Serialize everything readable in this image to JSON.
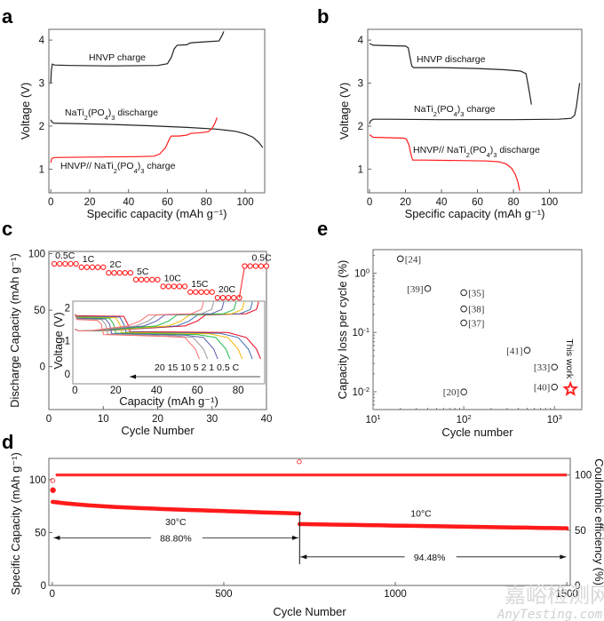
{
  "colors": {
    "black": "#222222",
    "red": "#ff1a1a",
    "rate_series": [
      "#e8001a",
      "#3d6eb5",
      "#f5b800",
      "#1ebd4a",
      "#5a5ab0",
      "#9a9a9a",
      "#ff6f6f"
    ]
  },
  "watermark": {
    "cn": "嘉峪检测网",
    "en": "AnyTesting.com"
  },
  "chart_data": [
    {
      "id": "a",
      "panel_label": "a",
      "type": "line",
      "xlabel": "Specific capacity (mAh g⁻¹)",
      "ylabel": "Voltage (V)",
      "xlim": [
        -1,
        110
      ],
      "ylim": [
        0.45,
        4.25
      ],
      "xticks": [
        0,
        20,
        40,
        60,
        80,
        100
      ],
      "yticks": [
        1,
        2,
        3,
        4
      ],
      "series": [
        {
          "name": "HNVP charge",
          "color": "black",
          "x": [
            0,
            0.3,
            0.8,
            2,
            10,
            30,
            55,
            60,
            62,
            63.5,
            65,
            70,
            71.5,
            73,
            80,
            86.5,
            88,
            89
          ],
          "y": [
            3.0,
            3.3,
            3.44,
            3.42,
            3.41,
            3.4,
            3.41,
            3.45,
            3.6,
            3.8,
            3.88,
            3.89,
            3.93,
            3.94,
            3.96,
            3.98,
            4.1,
            4.2
          ]
        },
        {
          "name": "NaTi₂(PO₄)₃ discharge",
          "color": "black",
          "x": [
            0,
            0.5,
            1.5,
            10,
            30,
            50,
            70,
            85,
            95,
            100,
            104,
            107,
            109
          ],
          "y": [
            2.15,
            2.1,
            2.07,
            2.06,
            2.04,
            2.01,
            1.97,
            1.93,
            1.88,
            1.82,
            1.74,
            1.62,
            1.5
          ]
        },
        {
          "name": "HNVP// NaTi₂(PO₄)₃ charge",
          "color": "red",
          "x": [
            0,
            0.5,
            2,
            20,
            45,
            53,
            56,
            59,
            61,
            62,
            66,
            70,
            72,
            78,
            81,
            83,
            84.5,
            85.5
          ],
          "y": [
            1.15,
            1.25,
            1.27,
            1.28,
            1.29,
            1.3,
            1.35,
            1.5,
            1.7,
            1.77,
            1.77,
            1.79,
            1.83,
            1.85,
            1.87,
            1.95,
            2.08,
            2.2
          ]
        }
      ],
      "annotations": [
        {
          "text_parts": [
            "HNVP charge"
          ],
          "color": "black"
        },
        {
          "text_parts": [
            "NaTi",
            "2",
            "(PO",
            "4",
            ")",
            "3",
            " discharge"
          ],
          "color": "black"
        },
        {
          "text_parts": [
            "HNVP// NaTi",
            "2",
            "(PO",
            "4",
            ")",
            "3",
            " charge"
          ],
          "color": "red"
        }
      ]
    },
    {
      "id": "b",
      "panel_label": "b",
      "type": "line",
      "xlabel": "Specific capacity (mAh g⁻¹)",
      "ylabel": "Voltage (V)",
      "xlim": [
        -1,
        118
      ],
      "ylim": [
        0.45,
        4.25
      ],
      "xticks": [
        0,
        20,
        40,
        60,
        80,
        100
      ],
      "yticks": [
        1,
        2,
        3,
        4
      ],
      "series": [
        {
          "name": "HNVP discharge",
          "color": "black",
          "x": [
            0,
            2,
            10,
            20,
            21.5,
            22.5,
            23.5,
            24.5,
            40,
            60,
            75,
            84,
            87,
            88,
            89,
            90
          ],
          "y": [
            3.92,
            3.88,
            3.87,
            3.86,
            3.82,
            3.6,
            3.4,
            3.36,
            3.36,
            3.34,
            3.31,
            3.28,
            3.22,
            3.0,
            2.75,
            2.5
          ]
        },
        {
          "name": "NaTi₂(PO₄)₃ charge",
          "color": "black",
          "x": [
            0,
            0.5,
            2,
            10,
            40,
            80,
            105,
            112,
            114,
            115,
            116,
            116.8
          ],
          "y": [
            2.05,
            2.12,
            2.16,
            2.16,
            2.15,
            2.15,
            2.16,
            2.18,
            2.25,
            2.45,
            2.75,
            3.0
          ]
        },
        {
          "name": "HNVP// NaTi₂(PO₄)₃ discharge",
          "color": "red",
          "x": [
            0,
            2,
            10,
            19,
            20.5,
            22,
            23,
            24,
            30,
            50,
            65,
            72,
            76,
            79,
            81,
            82.5,
            83.5
          ],
          "y": [
            1.8,
            1.74,
            1.73,
            1.72,
            1.7,
            1.55,
            1.35,
            1.21,
            1.21,
            1.2,
            1.19,
            1.17,
            1.12,
            1.02,
            0.88,
            0.7,
            0.5
          ]
        }
      ],
      "annotations": [
        {
          "text_parts": [
            "HNVP discharge"
          ],
          "color": "black"
        },
        {
          "text_parts": [
            "NaTi",
            "2",
            "(PO",
            "4",
            ")",
            "3",
            " charge"
          ],
          "color": "black"
        },
        {
          "text_parts": [
            "HNVP// NaTi",
            "2",
            "(PO",
            "4",
            ")",
            "3",
            " discharge"
          ],
          "color": "red"
        }
      ]
    },
    {
      "id": "c",
      "panel_label": "c",
      "type": "scatter",
      "xlabel": "Cycle Number",
      "ylabel": "Discharge Capacity (mAh g⁻¹)",
      "xlim": [
        0,
        40
      ],
      "ylim": [
        -38,
        102
      ],
      "xticks": [
        0,
        10,
        20,
        30,
        40
      ],
      "yticks": [
        0,
        50,
        100
      ],
      "rate_steps": [
        {
          "label": "0.5C",
          "cycles": [
            1,
            2,
            3,
            4,
            5
          ],
          "capacity": 91
        },
        {
          "label": "1C",
          "cycles": [
            6,
            7,
            8,
            9,
            10
          ],
          "capacity": 88
        },
        {
          "label": "2C",
          "cycles": [
            11,
            12,
            13,
            14,
            15
          ],
          "capacity": 83
        },
        {
          "label": "5C",
          "cycles": [
            16,
            17,
            18,
            19,
            20
          ],
          "capacity": 77
        },
        {
          "label": "10C",
          "cycles": [
            21,
            22,
            23,
            24,
            25
          ],
          "capacity": 71
        },
        {
          "label": "15C",
          "cycles": [
            26,
            27,
            28,
            29,
            30
          ],
          "capacity": 66
        },
        {
          "label": "20C",
          "cycles": [
            31,
            32,
            33,
            34,
            35
          ],
          "capacity": 61
        },
        {
          "label": "0.5C",
          "cycles": [
            36,
            37,
            38,
            39,
            40
          ],
          "capacity": 89
        }
      ],
      "inset": {
        "type": "line",
        "xlabel": "Capacity (mAh g⁻¹)",
        "ylabel": "Voltage (V)",
        "xlim": [
          -1,
          93
        ],
        "ylim": [
          -0.3,
          2.2
        ],
        "xticks": [
          0,
          20,
          40,
          60,
          80
        ],
        "yticks": [
          0,
          1,
          2
        ],
        "rate_legend": "20 15 10 5 2 1 0.5 C",
        "curves": [
          {
            "rate": "0.5C",
            "charge_end": 90,
            "charge_knee": 60,
            "discharge_end": 91,
            "discharge_knee": 26
          },
          {
            "rate": "1C",
            "charge_end": 87,
            "charge_knee": 56,
            "discharge_end": 87,
            "discharge_knee": 24
          },
          {
            "rate": "2C",
            "charge_end": 83,
            "charge_knee": 52,
            "discharge_end": 82,
            "discharge_knee": 22
          },
          {
            "rate": "5C",
            "charge_end": 79,
            "charge_knee": 46,
            "discharge_end": 76,
            "discharge_knee": 19
          },
          {
            "rate": "10C",
            "charge_end": 73,
            "charge_knee": 40,
            "discharge_end": 70,
            "discharge_knee": 17
          },
          {
            "rate": "15C",
            "charge_end": 68,
            "charge_knee": 36,
            "discharge_end": 65,
            "discharge_knee": 15
          },
          {
            "rate": "20C",
            "charge_end": 63,
            "charge_knee": 32,
            "discharge_end": 61,
            "discharge_knee": 13
          }
        ]
      }
    },
    {
      "id": "e",
      "panel_label": "e",
      "type": "scatter",
      "xscale": "log",
      "yscale": "log",
      "xlabel": "Cycle number",
      "ylabel": "Capacity loss per cycle (%)",
      "xlim": [
        10,
        2000
      ],
      "ylim": [
        0.005,
        2.5
      ],
      "xticks": [
        {
          "base": "10",
          "exp": "1",
          "value": 10
        },
        {
          "base": "10",
          "exp": "2",
          "value": 100
        },
        {
          "base": "10",
          "exp": "3",
          "value": 1000
        }
      ],
      "yticks": [
        {
          "base": "10",
          "exp": "0",
          "value": 1
        },
        {
          "base": "10",
          "exp": "-1",
          "value": 0.1
        },
        {
          "base": "10",
          "exp": "-2",
          "value": 0.01
        }
      ],
      "points": [
        {
          "ref": "[24]",
          "x": 20,
          "y": 1.75,
          "label_side": "right"
        },
        {
          "ref": "[39]",
          "x": 40,
          "y": 0.55,
          "label_side": "left"
        },
        {
          "ref": "[35]",
          "x": 100,
          "y": 0.47,
          "label_side": "right"
        },
        {
          "ref": "[38]",
          "x": 100,
          "y": 0.25,
          "label_side": "right"
        },
        {
          "ref": "[37]",
          "x": 100,
          "y": 0.145,
          "label_side": "right"
        },
        {
          "ref": "[41]",
          "x": 500,
          "y": 0.05,
          "label_side": "left"
        },
        {
          "ref": "[33]",
          "x": 1000,
          "y": 0.026,
          "label_side": "left"
        },
        {
          "ref": "[40]",
          "x": 1000,
          "y": 0.012,
          "label_side": "left"
        },
        {
          "ref": "[20]",
          "x": 100,
          "y": 0.0099,
          "label_side": "left"
        }
      ],
      "highlight": {
        "label": "This work",
        "x": 1500,
        "y": 0.011,
        "marker": "star",
        "color": "red"
      }
    },
    {
      "id": "d",
      "panel_label": "d",
      "type": "scatter",
      "xlabel": "Cycle Number",
      "ylabel": "Specific Capacity (mAh g⁻¹)",
      "y2label": "Coulombic efficiency (%)",
      "xlim": [
        -10,
        1510
      ],
      "ylim": [
        0,
        120
      ],
      "y2lim": [
        0,
        115
      ],
      "xticks": [
        0,
        500,
        1000,
        1500
      ],
      "yticks": [
        0,
        50,
        100
      ],
      "y2ticks": [
        0,
        50,
        100
      ],
      "segments": [
        {
          "temperature": "30°C",
          "x_start": 1,
          "x_end": 720,
          "capacity_start": 79,
          "capacity_end": 68,
          "retention": "88.80%"
        },
        {
          "temperature": "10°C",
          "x_start": 721,
          "x_end": 1500,
          "capacity_start": 58,
          "capacity_end": 54,
          "retention": "94.48%"
        }
      ],
      "initial_capacity": {
        "x": 2,
        "y": 90
      },
      "coulombic_efficiency": {
        "value": 100,
        "first_cycle": 95,
        "outlier": {
          "x": 720,
          "value": 112
        }
      }
    }
  ]
}
